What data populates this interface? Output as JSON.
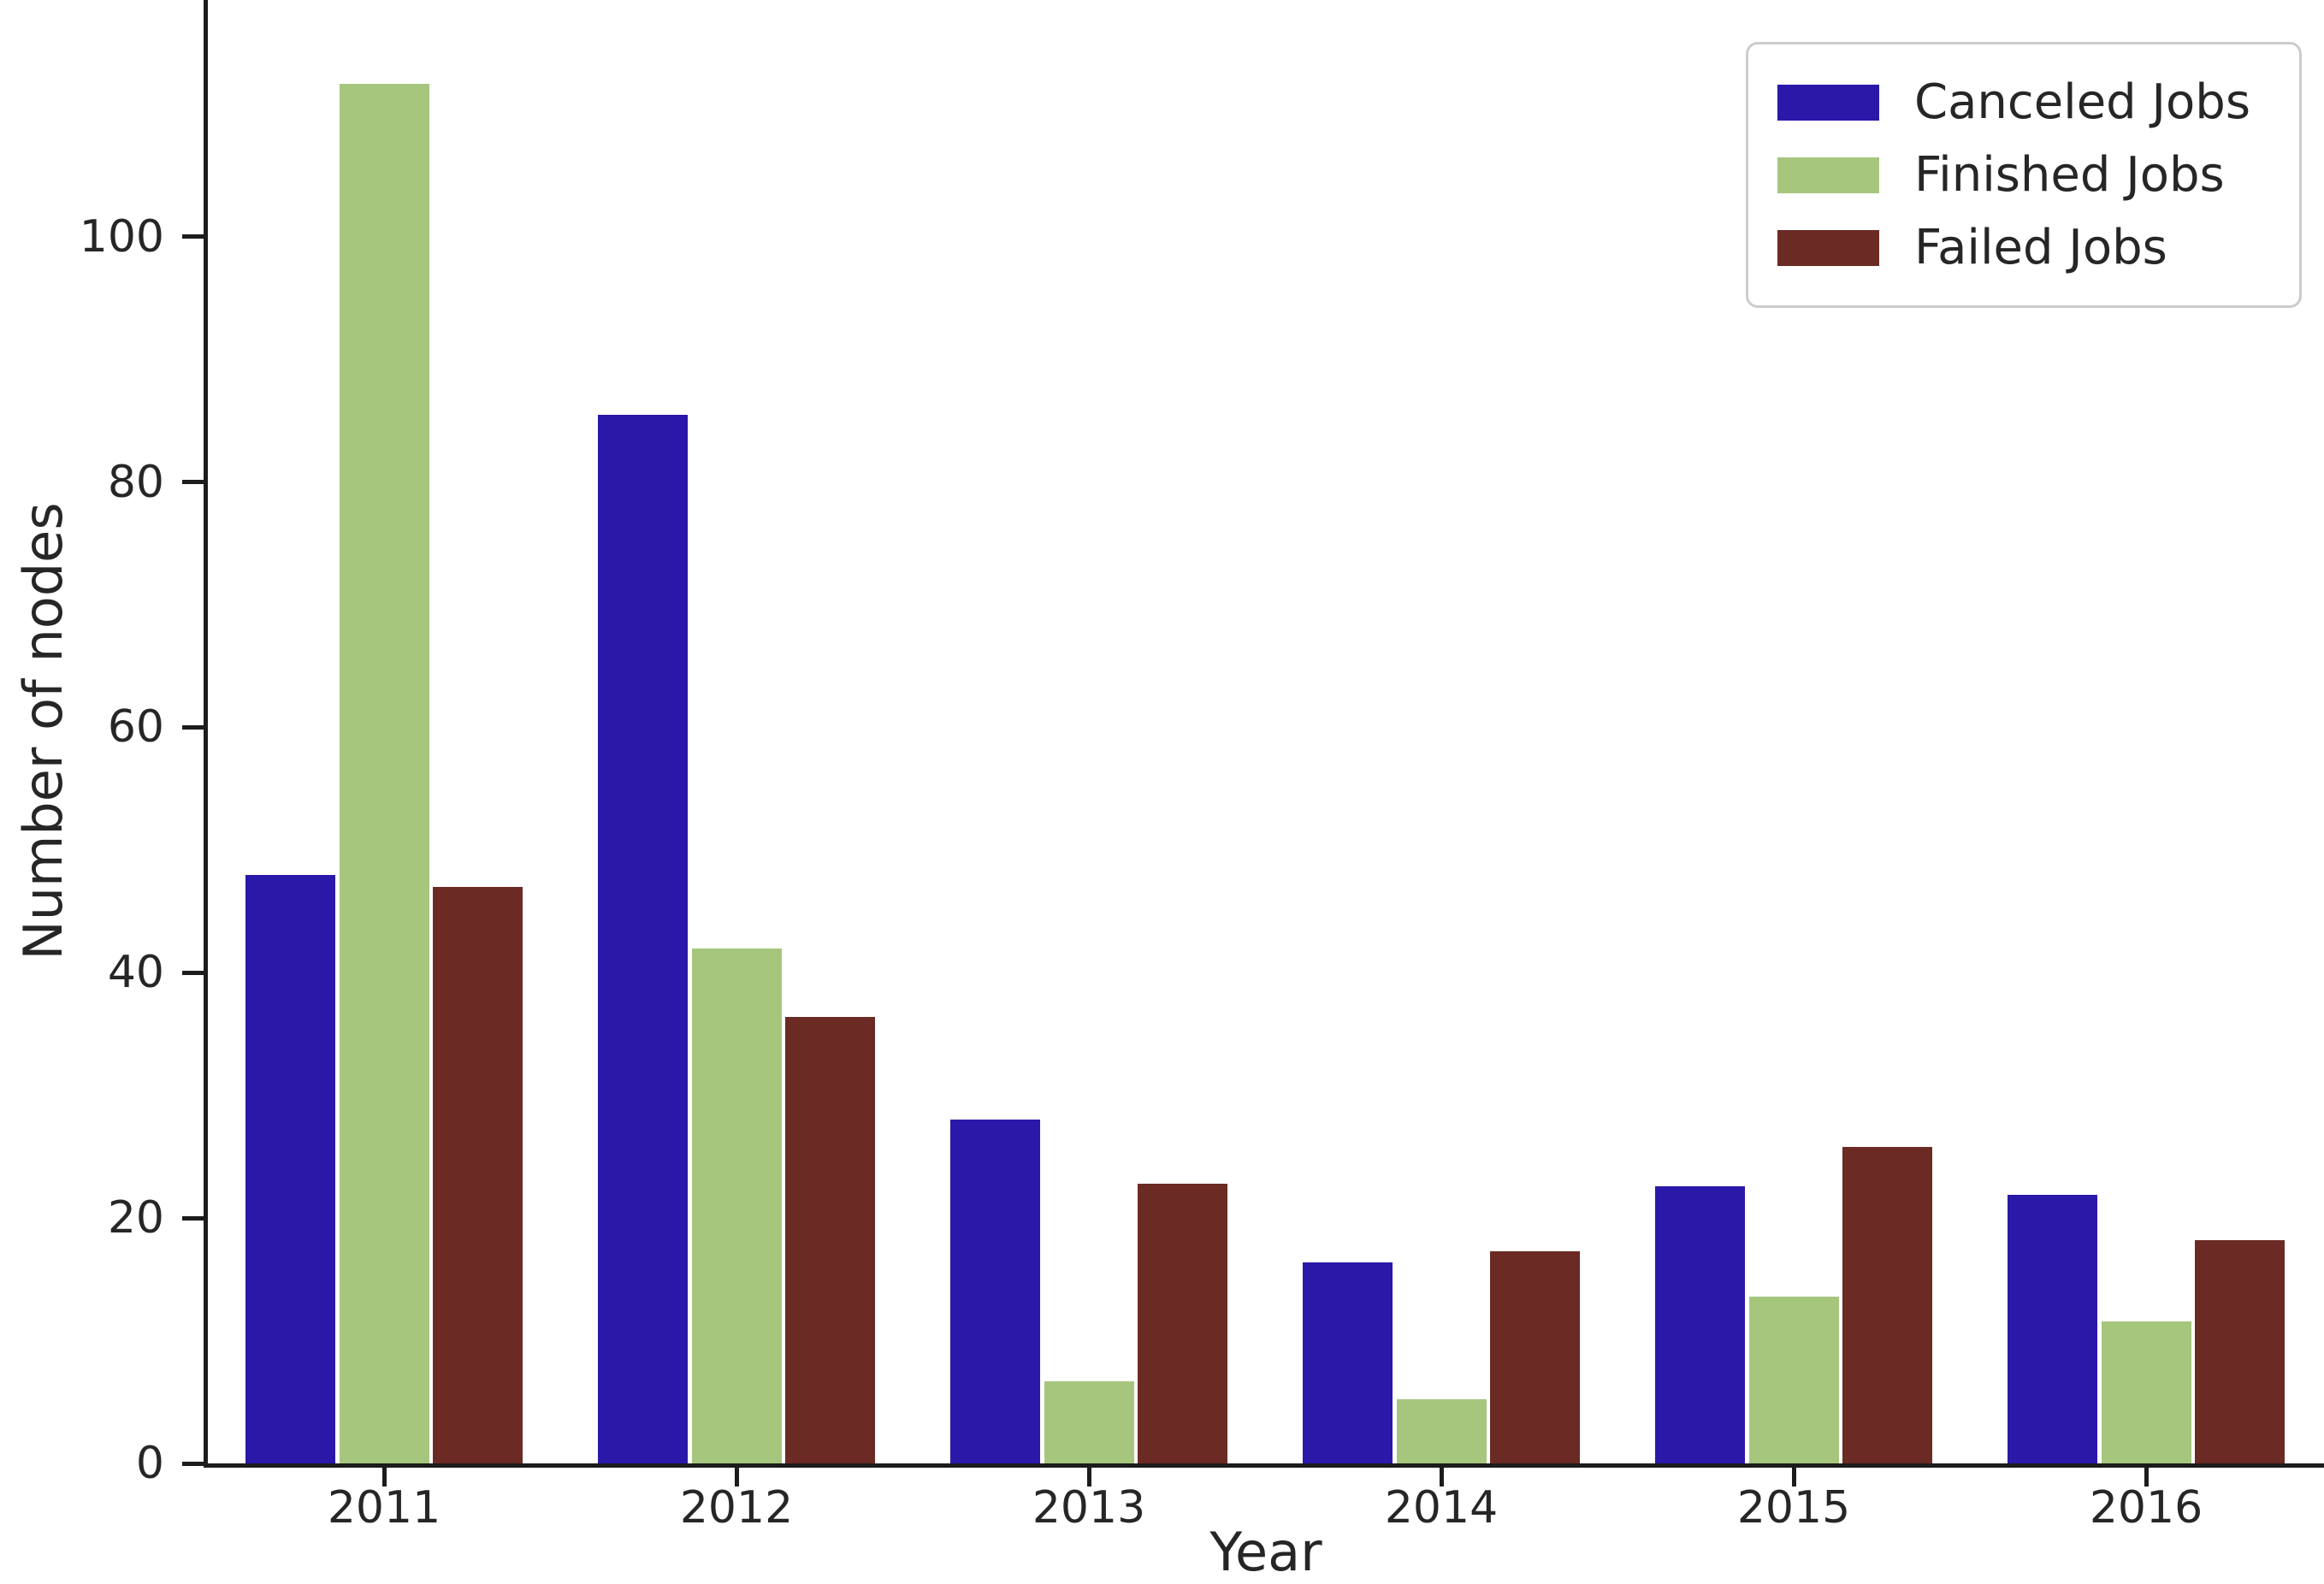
{
  "figure": {
    "background": "#ffffff",
    "text_color": "#262626",
    "axis_color": "#1c1c1c",
    "legend_border_color": "#cccccc"
  },
  "chart_data": {
    "type": "bar",
    "title": "",
    "xlabel": "Year",
    "ylabel": "Number of nodes",
    "categories": [
      "2011",
      "2012",
      "2013",
      "2014",
      "2015",
      "2016"
    ],
    "series": [
      {
        "name": "Canceled Jobs",
        "color": "#2A18A9",
        "values": [
          48,
          85.5,
          28,
          16.4,
          22.6,
          21.9
        ]
      },
      {
        "name": "Finished Jobs",
        "color": "#A6C67E",
        "values": [
          112.5,
          42,
          6.7,
          5.2,
          13.6,
          11.6
        ]
      },
      {
        "name": "Failed Jobs",
        "color": "#6B2A24",
        "values": [
          47,
          36.4,
          22.8,
          17.3,
          25.8,
          18.2
        ]
      }
    ],
    "yticks": [
      0,
      20,
      40,
      60,
      80,
      100
    ],
    "ylim": [
      0,
      119.3
    ],
    "grid": false,
    "legend_position": "upper right"
  }
}
